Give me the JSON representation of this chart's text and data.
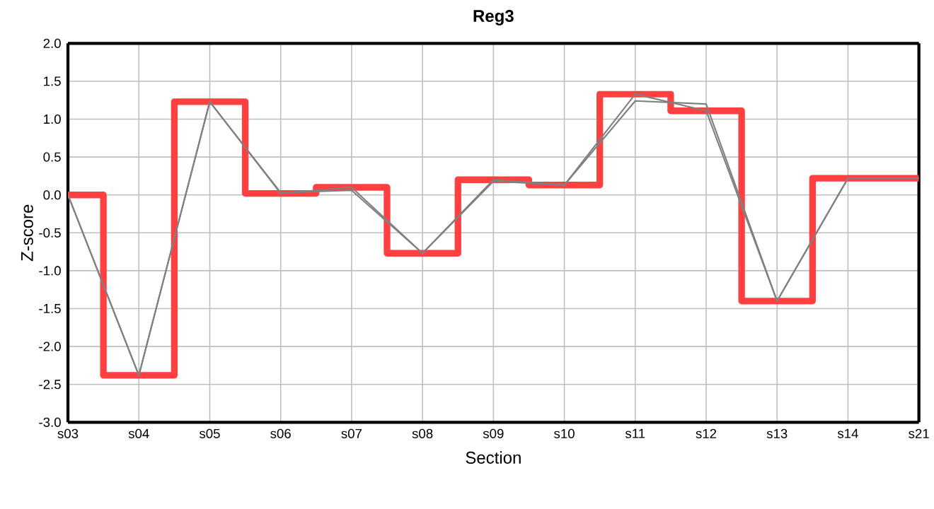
{
  "chart_data": {
    "type": "line",
    "title": "Reg3",
    "xlabel": "Section",
    "ylabel": "Z-score",
    "categories": [
      "s03",
      "s04",
      "s05",
      "s06",
      "s07",
      "s08",
      "s09",
      "s10",
      "s11",
      "s12",
      "s13",
      "s14",
      "s21"
    ],
    "series": [
      {
        "type": "step",
        "color": "#ff4040",
        "values": [
          0.0,
          -2.38,
          1.23,
          0.02,
          0.1,
          -0.77,
          0.2,
          0.13,
          1.33,
          1.11,
          -1.4,
          0.22,
          0.22
        ]
      },
      {
        "color": "#808080",
        "values": [
          0.0,
          -2.38,
          1.23,
          0.02,
          0.1,
          -0.77,
          0.2,
          0.13,
          1.33,
          1.11,
          -1.4,
          0.22,
          0.22
        ]
      },
      {
        "color": "#808080",
        "values": [
          0.0,
          -2.38,
          1.23,
          0.03,
          0.06,
          -0.77,
          0.18,
          0.13,
          1.24,
          1.2,
          -1.4,
          0.22,
          0.22
        ]
      }
    ],
    "ylim": [
      -3,
      2
    ],
    "yticks": [
      {
        "value": -3,
        "label": "-3.0"
      },
      {
        "value": -2.5,
        "label": "-2.5"
      },
      {
        "value": -2,
        "label": "-2.0"
      },
      {
        "value": -1.5,
        "label": "-1.5"
      },
      {
        "value": -1,
        "label": "-1.0"
      },
      {
        "value": -0.5,
        "label": "-0.5"
      },
      {
        "value": 0,
        "label": "0.0"
      },
      {
        "value": 0.5,
        "label": "0.5"
      },
      {
        "value": 1,
        "label": "1.0"
      },
      {
        "value": 1.5,
        "label": "1.5"
      },
      {
        "value": 2,
        "label": "2.0"
      }
    ],
    "grid": true,
    "marker": "none",
    "line_style": "solid"
  }
}
